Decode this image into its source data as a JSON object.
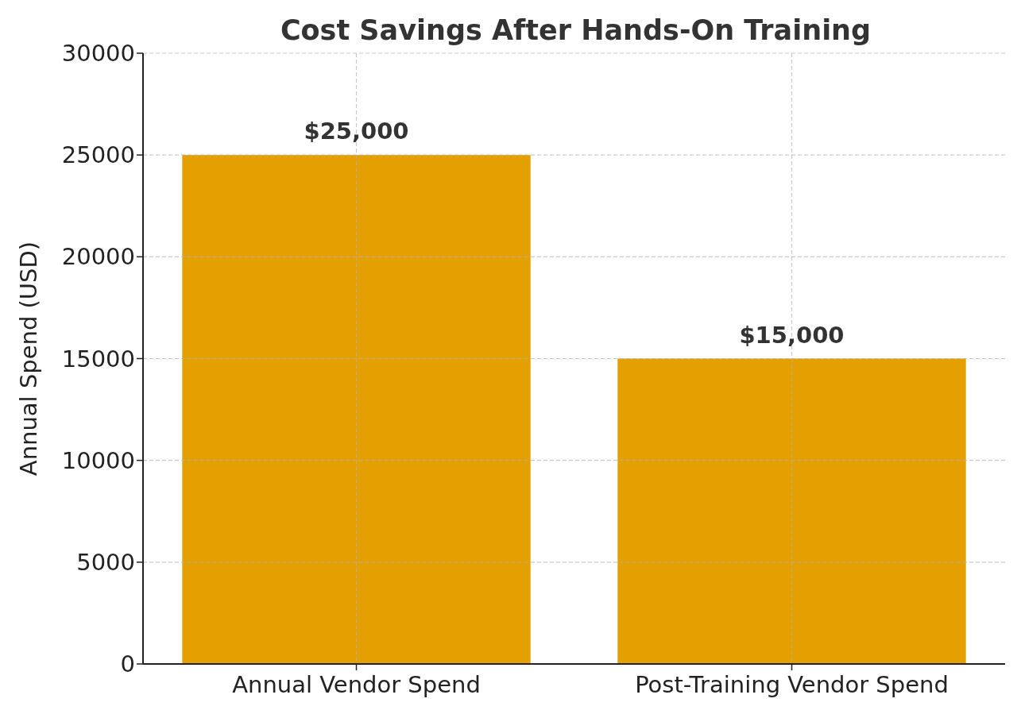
{
  "chart_data": {
    "type": "bar",
    "title": "Cost Savings After Hands-On Training",
    "ylabel": "Annual Spend (USD)",
    "categories": [
      "Annual Vendor Spend",
      "Post-Training Vendor Spend"
    ],
    "values": [
      25000,
      15000
    ],
    "color": "#e49f00",
    "value_labels": [
      "$25,000",
      "$15,000"
    ],
    "ylim": [
      0,
      30000
    ],
    "yticks": [
      0,
      5000,
      10000,
      15000,
      20000,
      25000,
      30000
    ],
    "grid": true
  }
}
